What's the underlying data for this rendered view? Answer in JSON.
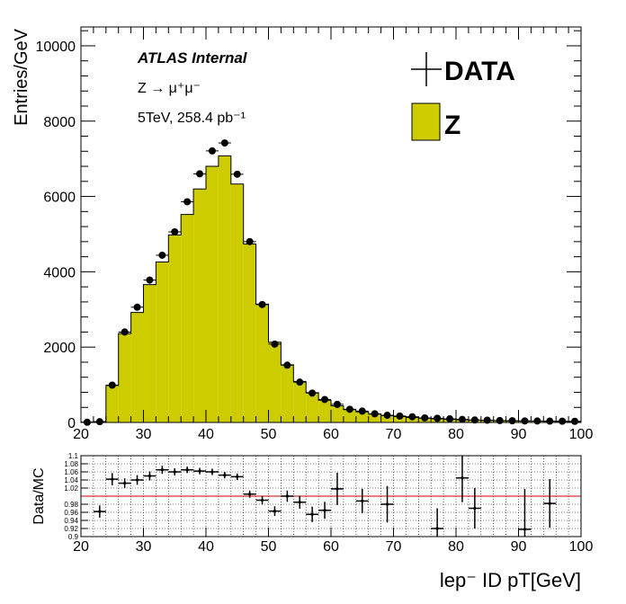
{
  "chart_data": [
    {
      "type": "bar",
      "histtype": "step-filled-with-markers",
      "title": "",
      "ylabel": "Entries/GeV",
      "xlabel": "",
      "xlim": [
        20,
        100
      ],
      "ylim": [
        0,
        10500
      ],
      "bin_width": 2,
      "x_ticks": [
        20,
        30,
        40,
        50,
        60,
        70,
        80,
        90,
        100
      ],
      "y_ticks": [
        0,
        2000,
        4000,
        6000,
        8000,
        10000
      ],
      "annotations": {
        "experiment": "ATLAS Internal",
        "process": "Z → μ⁺μ⁻",
        "lumi": "5TeV, 258.4 pb⁻¹"
      },
      "legend": {
        "position": "top-right",
        "entries": [
          "DATA",
          "Z"
        ]
      },
      "colors": {
        "mc_fill": "#cccc00",
        "data_marker": "#000000"
      },
      "series": [
        {
          "name": "Z",
          "x": [
            21,
            23,
            25,
            27,
            29,
            31,
            33,
            35,
            37,
            39,
            41,
            43,
            45,
            47,
            49,
            51,
            53,
            55,
            57,
            59,
            61,
            63,
            65,
            67,
            69,
            71,
            73,
            75,
            77,
            79,
            81,
            83,
            85,
            87,
            89,
            91,
            93,
            95,
            97,
            99
          ],
          "values": [
            5,
            20,
            980,
            2360,
            2920,
            3660,
            4260,
            4980,
            5520,
            6200,
            6800,
            7080,
            6330,
            4740,
            3140,
            2130,
            1530,
            1090,
            790,
            590,
            440,
            340,
            280,
            220,
            180,
            155,
            130,
            110,
            95,
            80,
            70,
            60,
            55,
            45,
            42,
            38,
            35,
            30,
            28,
            25
          ]
        },
        {
          "name": "DATA",
          "x": [
            21,
            23,
            25,
            27,
            29,
            31,
            33,
            35,
            37,
            39,
            41,
            43,
            45,
            47,
            49,
            51,
            53,
            55,
            57,
            59,
            61,
            63,
            65,
            67,
            69,
            71,
            73,
            75,
            77,
            79,
            81,
            83,
            85,
            87,
            89,
            91,
            93,
            95,
            97,
            99
          ],
          "values": [
            5,
            20,
            990,
            2400,
            3060,
            3780,
            4440,
            5060,
            5860,
            6600,
            7210,
            7420,
            6590,
            4800,
            3130,
            2080,
            1520,
            1070,
            780,
            610,
            480,
            350,
            300,
            230,
            190,
            170,
            150,
            120,
            110,
            95,
            80,
            65,
            60,
            50,
            45,
            40,
            38,
            35,
            33,
            30
          ]
        }
      ]
    },
    {
      "type": "scatter",
      "title": "",
      "ylabel": "Data/MC",
      "xlabel": "lep⁻ ID pT[GeV]",
      "xlim": [
        20,
        100
      ],
      "ylim": [
        0.9,
        1.1
      ],
      "x_ticks": [
        20,
        30,
        40,
        50,
        60,
        70,
        80,
        90,
        100
      ],
      "y_ticks": [
        0.9,
        0.92,
        0.94,
        0.96,
        0.98,
        1.02,
        1.04,
        1.06,
        1.08,
        1.1
      ],
      "y_tick_labels": [
        "0.9",
        "0.92",
        "0.94",
        "0.96",
        "0.98",
        "1.02",
        "1.04",
        "1.06",
        "1.08",
        "1.1"
      ],
      "reference_line": 1.0,
      "colors": {
        "reference_line": "#cc0000",
        "marker": "#000000"
      },
      "series": [
        {
          "name": "",
          "x": [
            23,
            25,
            27,
            29,
            31,
            33,
            35,
            37,
            39,
            41,
            43,
            45,
            47,
            49,
            51,
            53,
            55,
            57,
            59,
            61,
            65,
            69,
            77,
            81,
            83,
            91,
            95
          ],
          "values": [
            0.962,
            1.042,
            1.032,
            1.04,
            1.05,
            1.065,
            1.06,
            1.065,
            1.062,
            1.06,
            1.052,
            1.048,
            1.005,
            0.99,
            0.963,
            1.0,
            0.985,
            0.955,
            0.965,
            1.018,
            0.988,
            0.98,
            0.92,
            1.045,
            0.97,
            0.918,
            0.982
          ],
          "yerr": [
            0.015,
            0.015,
            0.012,
            0.012,
            0.011,
            0.01,
            0.009,
            0.008,
            0.008,
            0.008,
            0.008,
            0.008,
            0.009,
            0.011,
            0.012,
            0.014,
            0.016,
            0.019,
            0.021,
            0.04,
            0.03,
            0.045,
            0.05,
            0.06,
            0.05,
            0.1,
            0.06
          ]
        }
      ]
    }
  ]
}
